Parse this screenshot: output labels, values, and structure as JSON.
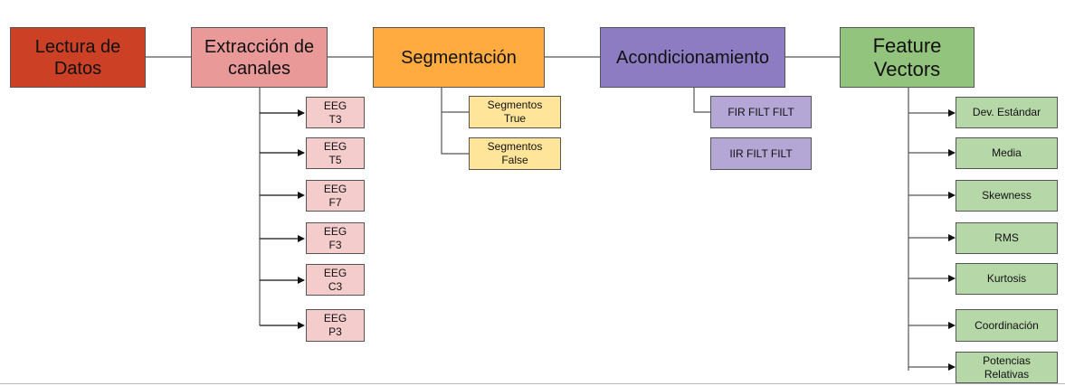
{
  "colors": {
    "lectura": "#cc4125",
    "extraccion": "#ea9999",
    "segmentacion": "#ffab40",
    "acondicionamiento": "#8e7cc3",
    "feature": "#93c47d",
    "eeg": "#f4cccc",
    "segmentos": "#ffe599",
    "filters": "#b4a7d6",
    "features": "#b6d7a8",
    "line": "#555555"
  },
  "main": {
    "lectura": "Lectura de\nDatos",
    "extraccion": "Extracción de\ncanales",
    "segmentacion": "Segmentación",
    "acondicionamiento": "Acondicionamiento",
    "feature": "Feature\nVectors"
  },
  "eeg": [
    "EEG\nT3",
    "EEG\nT5",
    "EEG\nF7",
    "EEG\nF3",
    "EEG\nC3",
    "EEG\nP3"
  ],
  "segmentos": [
    "Segmentos\nTrue",
    "Segmentos\nFalse"
  ],
  "filters": [
    "FIR FILT FILT",
    "IIR FILT FILT"
  ],
  "features": [
    "Dev. Estándar",
    "Media",
    "Skewness",
    "RMS",
    "Kurtosis",
    "Coordinación",
    "Potencias\nRelativas"
  ]
}
